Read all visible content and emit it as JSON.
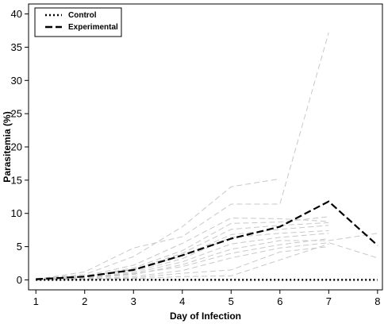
{
  "chart_data": {
    "type": "line",
    "xlabel": "Day of Infection",
    "ylabel": "Parasitemia (%)",
    "x": [
      1,
      2,
      3,
      4,
      5,
      6,
      7,
      8
    ],
    "xlim": [
      0.85,
      8.1
    ],
    "ylim": [
      -1.5,
      41.5
    ],
    "yticks": [
      0,
      5,
      10,
      15,
      20,
      25,
      30,
      35,
      40
    ],
    "grid": false,
    "legend_position": "top-left",
    "series": [
      {
        "name": "Control",
        "style": "dotted",
        "color": "#000000",
        "values": [
          0,
          0,
          0,
          0,
          0,
          0,
          0,
          0
        ]
      },
      {
        "name": "Experimental",
        "style": "dashed",
        "color": "#000000",
        "values": [
          0.1,
          0.5,
          1.5,
          3.7,
          6.2,
          8.0,
          11.8,
          5.2
        ]
      }
    ],
    "individual_series": [
      {
        "style": "dashed",
        "color": "#c8c8c8",
        "values": [
          0.2,
          0.8,
          3.5,
          8.0,
          14.0,
          15.2,
          null,
          null
        ]
      },
      {
        "style": "dashed",
        "color": "#c8c8c8",
        "values": [
          0.1,
          1.2,
          4.8,
          6.5,
          11.4,
          11.4,
          37.2,
          null
        ]
      },
      {
        "style": "dashed",
        "color": "#c8c8c8",
        "values": [
          0.1,
          0.6,
          2.2,
          5.5,
          9.3,
          9.2,
          8.8,
          null
        ]
      },
      {
        "style": "dashed",
        "color": "#c8c8c8",
        "values": [
          0.0,
          0.5,
          1.8,
          4.4,
          8.5,
          8.7,
          9.5,
          null
        ]
      },
      {
        "style": "dashed",
        "color": "#c8c8c8",
        "values": [
          0.1,
          0.4,
          1.6,
          4.0,
          7.6,
          8.2,
          8.6,
          null
        ]
      },
      {
        "style": "dashed",
        "color": "#c8c8c8",
        "values": [
          0.2,
          0.6,
          1.5,
          3.6,
          6.8,
          7.6,
          8.2,
          null
        ]
      },
      {
        "style": "dashed",
        "color": "#c8c8c8",
        "values": [
          0.0,
          0.3,
          1.2,
          3.2,
          6.4,
          7.0,
          7.4,
          null
        ]
      },
      {
        "style": "dashed",
        "color": "#c8c8c8",
        "values": [
          0.1,
          0.4,
          1.0,
          2.7,
          5.4,
          6.4,
          7.0,
          null
        ]
      },
      {
        "style": "dashed",
        "color": "#c8c8c8",
        "values": [
          0.0,
          0.2,
          0.8,
          2.3,
          4.6,
          5.9,
          5.9,
          7.0
        ]
      },
      {
        "style": "dashed",
        "color": "#c8c8c8",
        "values": [
          0.0,
          0.3,
          0.9,
          2.0,
          4.0,
          5.3,
          6.2,
          null
        ]
      },
      {
        "style": "dashed",
        "color": "#c8c8c8",
        "values": [
          0.0,
          0.1,
          0.5,
          1.4,
          3.3,
          4.8,
          5.6,
          3.3
        ]
      },
      {
        "style": "dashed",
        "color": "#c8c8c8",
        "values": [
          0.0,
          0.1,
          0.3,
          1.0,
          1.5,
          4.2,
          5.0,
          null
        ]
      },
      {
        "style": "dashed",
        "color": "#c8c8c8",
        "values": [
          0.0,
          0.1,
          0.2,
          0.5,
          0.6,
          3.0,
          5.4,
          null
        ]
      }
    ]
  }
}
